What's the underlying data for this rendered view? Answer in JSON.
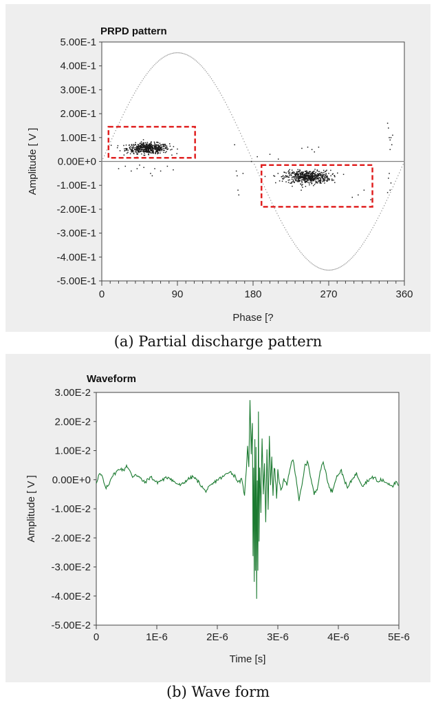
{
  "captions": {
    "a": "(a) Partial discharge pattern",
    "b": "(b) Wave form"
  },
  "chart_data": [
    {
      "type": "scatter",
      "title": "PRPD pattern",
      "xlabel": "Phase [?",
      "ylabel": "Amplitude [ V ]",
      "xlim": [
        0,
        360
      ],
      "ylim": [
        -0.5,
        0.5
      ],
      "x_ticks": [
        0,
        90,
        180,
        270,
        360
      ],
      "x_tick_labels": [
        "0",
        "90",
        "180",
        "270",
        "360"
      ],
      "y_ticks": [
        0.5,
        0.4,
        0.3,
        0.2,
        0.1,
        0.0,
        -0.1,
        -0.2,
        -0.3,
        -0.4,
        -0.5
      ],
      "y_tick_labels": [
        "5.00E-1",
        "4.00E-1",
        "3.00E-1",
        "2.00E-1",
        "1.00E-1",
        "0.00E+0",
        "-1.00E-1",
        "-2.00E-1",
        "-3.00E-1",
        "-4.00E-1",
        "-5.00E-1"
      ],
      "reference_sine": {
        "amplitude": 0.455,
        "color": "#8a8a8a"
      },
      "zero_line_color": "#808080",
      "clusters": [
        {
          "x_center": 55,
          "x_spread": 28,
          "y_center": 0.055,
          "y_spread": 0.02,
          "count": 520
        },
        {
          "x_center": 245,
          "x_spread": 30,
          "y_center": -0.065,
          "y_spread": 0.025,
          "count": 560
        }
      ],
      "sparse_points": [
        [
          20,
          -0.03
        ],
        [
          28,
          -0.02
        ],
        [
          35,
          -0.04
        ],
        [
          42,
          -0.03
        ],
        [
          50,
          -0.025
        ],
        [
          58,
          -0.05
        ],
        [
          63,
          -0.03
        ],
        [
          70,
          -0.04
        ],
        [
          78,
          -0.02
        ],
        [
          85,
          -0.035
        ],
        [
          60,
          -0.06
        ],
        [
          45,
          -0.015
        ],
        [
          158,
          0.07
        ],
        [
          160,
          -0.04
        ],
        [
          161,
          -0.06
        ],
        [
          162,
          -0.12
        ],
        [
          163,
          -0.14
        ],
        [
          168,
          -0.05
        ],
        [
          178,
          0.0
        ],
        [
          185,
          0.02
        ],
        [
          200,
          0.03
        ],
        [
          210,
          0.01
        ],
        [
          238,
          0.055
        ],
        [
          245,
          0.06
        ],
        [
          250,
          0.05
        ],
        [
          258,
          0.06
        ],
        [
          253,
          0.04
        ],
        [
          298,
          -0.15
        ],
        [
          305,
          -0.14
        ],
        [
          312,
          -0.12
        ],
        [
          320,
          -0.16
        ],
        [
          340,
          0.16
        ],
        [
          341,
          0.14
        ],
        [
          342,
          0.1
        ],
        [
          343,
          0.09
        ],
        [
          344,
          0.1
        ],
        [
          346,
          0.11
        ],
        [
          345,
          0.07
        ],
        [
          343,
          0.05
        ],
        [
          342,
          -0.05
        ],
        [
          341,
          -0.07
        ],
        [
          344,
          -0.09
        ],
        [
          343,
          -0.12
        ],
        [
          340,
          -0.13
        ]
      ],
      "highlight_boxes": [
        {
          "x0": 8,
          "x1": 111,
          "y0": 0.015,
          "y1": 0.145,
          "color": "#e02020"
        },
        {
          "x0": 190,
          "x1": 322,
          "y0": -0.19,
          "y1": -0.015,
          "color": "#e02020"
        }
      ],
      "point_color": "#1a1a1a"
    },
    {
      "type": "line",
      "title": "Waveform",
      "xlabel": "Time [s]",
      "ylabel": "Amplitude [ V ]",
      "xlim": [
        0,
        5e-06
      ],
      "ylim": [
        -0.05,
        0.03
      ],
      "x_ticks": [
        0,
        1e-06,
        2e-06,
        3e-06,
        4e-06,
        5e-06
      ],
      "x_tick_labels": [
        "0",
        "1E-6",
        "2E-6",
        "3E-6",
        "4E-6",
        "5E-6"
      ],
      "y_ticks": [
        0.03,
        0.02,
        0.01,
        0.0,
        -0.01,
        -0.02,
        -0.03,
        -0.04,
        -0.05
      ],
      "y_tick_labels": [
        "3.00E-2",
        "2.00E-2",
        "1.00E-2",
        "0.00E+0",
        "-1.00E-2",
        "-2.00E-2",
        "-3.00E-2",
        "-4.00E-2",
        "-5.00E-2"
      ],
      "line_color": "#1b7a30",
      "x_unit": "us",
      "points": [
        [
          0.0,
          -0.001
        ],
        [
          0.05,
          0.002
        ],
        [
          0.1,
          0.001
        ],
        [
          0.15,
          -0.003
        ],
        [
          0.2,
          -0.002
        ],
        [
          0.25,
          0.001
        ],
        [
          0.3,
          0.002
        ],
        [
          0.35,
          0.003
        ],
        [
          0.4,
          0.004
        ],
        [
          0.45,
          0.003
        ],
        [
          0.5,
          0.005
        ],
        [
          0.55,
          0.003
        ],
        [
          0.6,
          0.001
        ],
        [
          0.65,
          0.002
        ],
        [
          0.7,
          0.001
        ],
        [
          0.8,
          -0.001
        ],
        [
          0.9,
          0.001
        ],
        [
          1.0,
          -0.001
        ],
        [
          1.1,
          0.0
        ],
        [
          1.2,
          0.001
        ],
        [
          1.3,
          -0.001
        ],
        [
          1.4,
          -0.002
        ],
        [
          1.5,
          0.0
        ],
        [
          1.6,
          0.001
        ],
        [
          1.7,
          -0.001
        ],
        [
          1.8,
          -0.004
        ],
        [
          1.85,
          -0.003
        ],
        [
          1.9,
          -0.002
        ],
        [
          2.0,
          0.0
        ],
        [
          2.1,
          0.001
        ],
        [
          2.2,
          0.003
        ],
        [
          2.25,
          0.002
        ],
        [
          2.3,
          0.001
        ],
        [
          2.35,
          -0.001
        ],
        [
          2.4,
          0.0
        ],
        [
          2.45,
          -0.005
        ],
        [
          2.48,
          0.003
        ],
        [
          2.5,
          0.012
        ],
        [
          2.52,
          0.005
        ],
        [
          2.54,
          0.027
        ],
        [
          2.56,
          0.01
        ],
        [
          2.58,
          0.02
        ],
        [
          2.59,
          -0.025
        ],
        [
          2.6,
          0.005
        ],
        [
          2.61,
          -0.035
        ],
        [
          2.62,
          0.015
        ],
        [
          2.63,
          -0.03
        ],
        [
          2.64,
          0.01
        ],
        [
          2.65,
          -0.041
        ],
        [
          2.66,
          0.0
        ],
        [
          2.67,
          -0.03
        ],
        [
          2.68,
          0.022
        ],
        [
          2.69,
          -0.02
        ],
        [
          2.7,
          0.005
        ],
        [
          2.72,
          -0.01
        ],
        [
          2.74,
          0.015
        ],
        [
          2.76,
          -0.006
        ],
        [
          2.78,
          0.005
        ],
        [
          2.8,
          -0.014
        ],
        [
          2.82,
          0.01
        ],
        [
          2.84,
          -0.01
        ],
        [
          2.86,
          0.015
        ],
        [
          2.88,
          -0.003
        ],
        [
          2.9,
          0.008
        ],
        [
          2.92,
          -0.005
        ],
        [
          2.94,
          0.005
        ],
        [
          2.96,
          0.0
        ],
        [
          2.98,
          -0.006
        ],
        [
          3.0,
          0.003
        ],
        [
          3.05,
          -0.004
        ],
        [
          3.1,
          0.0
        ],
        [
          3.15,
          -0.002
        ],
        [
          3.2,
          0.004
        ],
        [
          3.25,
          0.007
        ],
        [
          3.3,
          0.001
        ],
        [
          3.35,
          -0.007
        ],
        [
          3.4,
          -0.002
        ],
        [
          3.45,
          0.005
        ],
        [
          3.5,
          0.006
        ],
        [
          3.55,
          0.0
        ],
        [
          3.6,
          -0.005
        ],
        [
          3.65,
          -0.003
        ],
        [
          3.7,
          0.003
        ],
        [
          3.75,
          0.006
        ],
        [
          3.8,
          0.002
        ],
        [
          3.85,
          -0.003
        ],
        [
          3.9,
          -0.004
        ],
        [
          3.95,
          0.0
        ],
        [
          4.0,
          0.002
        ],
        [
          4.05,
          0.003
        ],
        [
          4.1,
          0.0
        ],
        [
          4.15,
          -0.003
        ],
        [
          4.2,
          -0.001
        ],
        [
          4.25,
          0.001
        ],
        [
          4.3,
          0.002
        ],
        [
          4.35,
          0.0
        ],
        [
          4.4,
          -0.002
        ],
        [
          4.45,
          -0.001
        ],
        [
          4.5,
          0.0
        ],
        [
          4.6,
          0.001
        ],
        [
          4.65,
          -0.001
        ],
        [
          4.7,
          0.0
        ],
        [
          4.8,
          -0.001
        ],
        [
          4.9,
          -0.002
        ],
        [
          4.95,
          -0.001
        ],
        [
          5.0,
          -0.002
        ]
      ]
    }
  ]
}
